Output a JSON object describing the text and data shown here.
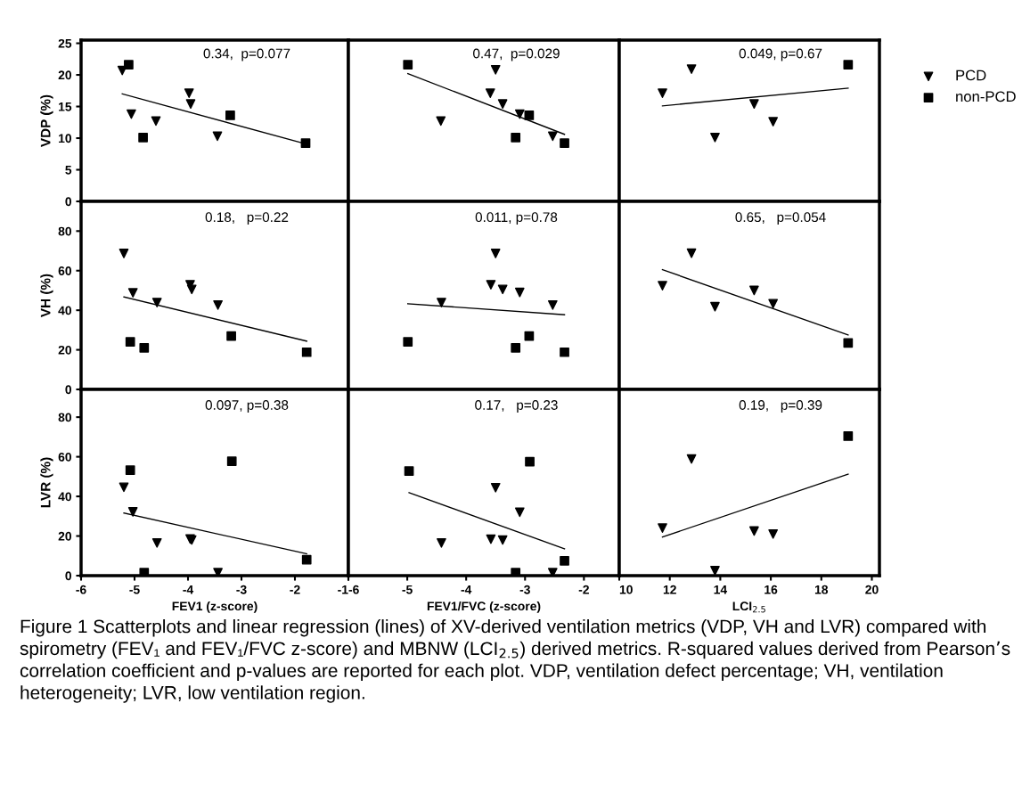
{
  "chart_data": [
    {
      "type": "scatter",
      "xlim": [
        -6,
        -1
      ],
      "xticks": [
        -6,
        -5,
        -4,
        -3,
        -2,
        -1
      ],
      "ylim": [
        0,
        25.5
      ],
      "yticks": [
        0,
        5,
        10,
        15,
        20,
        25
      ],
      "tick_labels": "y",
      "ylabel": "VDP (%)",
      "annotations": [
        "0.34,  p=0.077"
      ],
      "series": [
        {
          "type": "scatter",
          "marker": "triangle",
          "color": "#000000",
          "x": [
            -5.23,
            -5.06,
            -4.6,
            -3.98,
            -3.95,
            -3.45
          ],
          "values": [
            20.7,
            13.8,
            12.7,
            17.1,
            15.4,
            10.3
          ]
        },
        {
          "type": "scatter",
          "marker": "square",
          "color": "#000000",
          "x": [
            -5.11,
            -4.84,
            -3.21,
            -1.8
          ],
          "values": [
            21.6,
            10.1,
            13.6,
            9.2
          ]
        },
        {
          "type": "line",
          "color": "#000000",
          "x": [
            -5.23,
            -1.8
          ],
          "values": [
            17.0,
            9.1
          ]
        }
      ]
    },
    {
      "type": "scatter",
      "xlim": [
        -6,
        -1.4
      ],
      "xticks": [
        -6,
        -5,
        -4,
        -3,
        -2
      ],
      "ylim": [
        0,
        25.5
      ],
      "yticks": [
        0,
        5,
        10,
        15,
        20,
        25
      ],
      "tick_labels": false,
      "annotations": [
        "0.47,  p=0.029"
      ],
      "series": [
        {
          "type": "scatter",
          "marker": "triangle",
          "color": "#000000",
          "x": [
            -3.5,
            -3.59,
            -4.43,
            -3.38,
            -3.09,
            -2.53
          ],
          "values": [
            20.8,
            17.1,
            12.7,
            15.4,
            13.8,
            10.3
          ]
        },
        {
          "type": "scatter",
          "marker": "square",
          "color": "#000000",
          "x": [
            -4.99,
            -2.93,
            -3.16,
            -2.33
          ],
          "values": [
            21.6,
            13.6,
            10.1,
            9.2
          ]
        },
        {
          "type": "line",
          "color": "#000000",
          "x": [
            -4.99,
            -2.33
          ],
          "values": [
            20.2,
            10.6
          ]
        }
      ]
    },
    {
      "type": "scatter",
      "xlim": [
        10,
        20.3
      ],
      "xticks": [
        10,
        12,
        14,
        16,
        18,
        20
      ],
      "ylim": [
        0,
        25.5
      ],
      "yticks": [
        0,
        5,
        10,
        15,
        20,
        25
      ],
      "tick_labels": false,
      "legend": "right",
      "annotations": [
        "0.049, p=0.67"
      ],
      "series": [
        {
          "type": "scatter",
          "name": "PCD",
          "marker": "triangle",
          "color": "#000000",
          "x": [
            12.86,
            11.71,
            15.34,
            16.09,
            13.79
          ],
          "values": [
            20.9,
            17.1,
            15.4,
            12.6,
            10.1
          ]
        },
        {
          "type": "scatter",
          "name": "non-PCD",
          "marker": "square",
          "color": "#000000",
          "x": [
            19.06
          ],
          "values": [
            21.6
          ]
        },
        {
          "type": "line",
          "color": "#000000",
          "x": [
            11.71,
            19.06
          ],
          "values": [
            15.1,
            17.9
          ]
        }
      ]
    },
    {
      "type": "scatter",
      "xlim": [
        -6,
        -1
      ],
      "xticks": [
        -6,
        -5,
        -4,
        -3,
        -2,
        -1
      ],
      "ylim": [
        0,
        95
      ],
      "yticks": [
        0,
        20,
        40,
        60,
        80
      ],
      "tick_labels": "y",
      "ylabel": "VH (%)",
      "annotations": [
        "0.18,   p=0.22"
      ],
      "series": [
        {
          "type": "scatter",
          "marker": "triangle",
          "color": "#000000",
          "x": [
            -5.2,
            -5.03,
            -4.58,
            -3.96,
            -3.93,
            -3.44
          ],
          "values": [
            68.7,
            48.8,
            43.9,
            52.9,
            50.5,
            42.6
          ]
        },
        {
          "type": "scatter",
          "marker": "square",
          "color": "#000000",
          "x": [
            -5.08,
            -4.82,
            -3.19,
            -1.78
          ],
          "values": [
            24.0,
            21.0,
            27.0,
            18.8
          ]
        },
        {
          "type": "line",
          "color": "#000000",
          "x": [
            -5.2,
            -1.78
          ],
          "values": [
            46.7,
            24.4
          ]
        }
      ]
    },
    {
      "type": "scatter",
      "xlim": [
        -6,
        -1.4
      ],
      "xticks": [
        -6,
        -5,
        -4,
        -3,
        -2
      ],
      "ylim": [
        0,
        95
      ],
      "yticks": [
        0,
        20,
        40,
        60,
        80
      ],
      "tick_labels": false,
      "annotations": [
        "0.011, p=0.78"
      ],
      "series": [
        {
          "type": "scatter",
          "marker": "triangle",
          "color": "#000000",
          "x": [
            -3.5,
            -3.58,
            -3.38,
            -3.09,
            -4.42,
            -2.53
          ],
          "values": [
            68.7,
            52.9,
            50.5,
            49.0,
            43.9,
            42.6
          ]
        },
        {
          "type": "scatter",
          "marker": "square",
          "color": "#000000",
          "x": [
            -4.99,
            -3.16,
            -2.93,
            -2.33
          ],
          "values": [
            24.0,
            21.0,
            27.0,
            18.8
          ]
        },
        {
          "type": "line",
          "color": "#000000",
          "x": [
            -4.99,
            -2.33
          ],
          "values": [
            43.3,
            37.7
          ]
        }
      ]
    },
    {
      "type": "scatter",
      "xlim": [
        10,
        20.3
      ],
      "xticks": [
        10,
        12,
        14,
        16,
        18,
        20
      ],
      "ylim": [
        0,
        95
      ],
      "yticks": [
        0,
        20,
        40,
        60,
        80
      ],
      "tick_labels": false,
      "annotations": [
        "0.65,   p=0.054"
      ],
      "series": [
        {
          "type": "scatter",
          "marker": "triangle",
          "color": "#000000",
          "x": [
            12.86,
            11.71,
            15.34,
            16.09,
            13.79
          ],
          "values": [
            68.8,
            52.4,
            50.0,
            43.3,
            41.8
          ]
        },
        {
          "type": "scatter",
          "marker": "square",
          "color": "#000000",
          "x": [
            19.06
          ],
          "values": [
            23.5
          ]
        },
        {
          "type": "line",
          "color": "#000000",
          "x": [
            11.71,
            19.06
          ],
          "values": [
            60.5,
            27.5
          ]
        }
      ]
    },
    {
      "type": "scatter",
      "xlim": [
        -6,
        -1
      ],
      "xticks": [
        -6,
        -5,
        -4,
        -3,
        -2,
        -1
      ],
      "ylim": [
        0,
        94
      ],
      "yticks": [
        0,
        20,
        40,
        60,
        80
      ],
      "ylabel": "LVR (%)",
      "xlabel": "FEV1 (z-score)",
      "annotations": [
        "0.097, p=0.38"
      ],
      "series": [
        {
          "type": "scatter",
          "marker": "triangle",
          "color": "#000000",
          "x": [
            -5.2,
            -5.03,
            -4.58,
            -3.96,
            -3.93,
            -3.44
          ],
          "values": [
            44.6,
            32.2,
            16.5,
            18.5,
            18.0,
            1.5
          ]
        },
        {
          "type": "scatter",
          "marker": "square",
          "color": "#000000",
          "x": [
            -5.08,
            -4.82,
            -3.18,
            -1.78
          ],
          "values": [
            53.2,
            1.5,
            57.7,
            8.0
          ]
        },
        {
          "type": "line",
          "color": "#000000",
          "x": [
            -5.2,
            -1.78
          ],
          "values": [
            31.6,
            11.0
          ]
        }
      ]
    },
    {
      "type": "scatter",
      "xlim": [
        -6,
        -1.4
      ],
      "xticks": [
        -6,
        -5,
        -4,
        -3,
        -2
      ],
      "ylim": [
        0,
        94
      ],
      "yticks": [
        0,
        20,
        40,
        60,
        80
      ],
      "tick_labels": "x",
      "xlabel": "FEV1/FVC (z-score)",
      "annotations": [
        "0.17,   p=0.23"
      ],
      "series": [
        {
          "type": "scatter",
          "marker": "triangle",
          "color": "#000000",
          "x": [
            -3.5,
            -3.09,
            -3.58,
            -3.38,
            -4.42,
            -2.53
          ],
          "values": [
            44.4,
            32.0,
            18.4,
            18.0,
            16.5,
            1.5
          ]
        },
        {
          "type": "scatter",
          "marker": "square",
          "color": "#000000",
          "x": [
            -4.97,
            -3.16,
            -2.92,
            -2.33
          ],
          "values": [
            52.8,
            1.5,
            57.5,
            7.5
          ]
        },
        {
          "type": "line",
          "color": "#000000",
          "x": [
            -4.97,
            -2.33
          ],
          "values": [
            41.9,
            13.5
          ]
        }
      ]
    },
    {
      "type": "scatter",
      "xlim": [
        10,
        20.3
      ],
      "xticks": [
        10,
        12,
        14,
        16,
        18,
        20
      ],
      "ylim": [
        0,
        94
      ],
      "yticks": [
        0,
        20,
        40,
        60,
        80
      ],
      "tick_labels": "x",
      "xlabel": "LCI$_{2.5}$",
      "annotations": [
        "0.19,   p=0.39",
        "Figure 1 Scatterplots and linear regression (lines) of XV-derived ventilation metrics (VDP, VH and LVR) compared with spirometry (FEV₁ and FEV₁/FVC z-score) and MBNW (LCI$_{2.5}$) derived metrics. R-squared values derived from Pearson’s correlation coefficient and p-values are reported for each plot. VDP, ventilation defect percentage; VH, ventilation heterogeneity; LVR, low ventilation region."
      ],
      "series": [
        {
          "type": "scatter",
          "marker": "triangle",
          "color": "#000000",
          "x": [
            12.86,
            11.71,
            15.34,
            16.09,
            13.79
          ],
          "values": [
            58.9,
            24.0,
            22.5,
            21.0,
            2.5
          ]
        },
        {
          "type": "scatter",
          "marker": "square",
          "color": "#000000",
          "x": [
            19.06
          ],
          "values": [
            70.4
          ]
        },
        {
          "type": "line",
          "color": "#000000",
          "x": [
            11.71,
            19.06
          ],
          "values": [
            19.5,
            51.2
          ]
        }
      ]
    }
  ]
}
